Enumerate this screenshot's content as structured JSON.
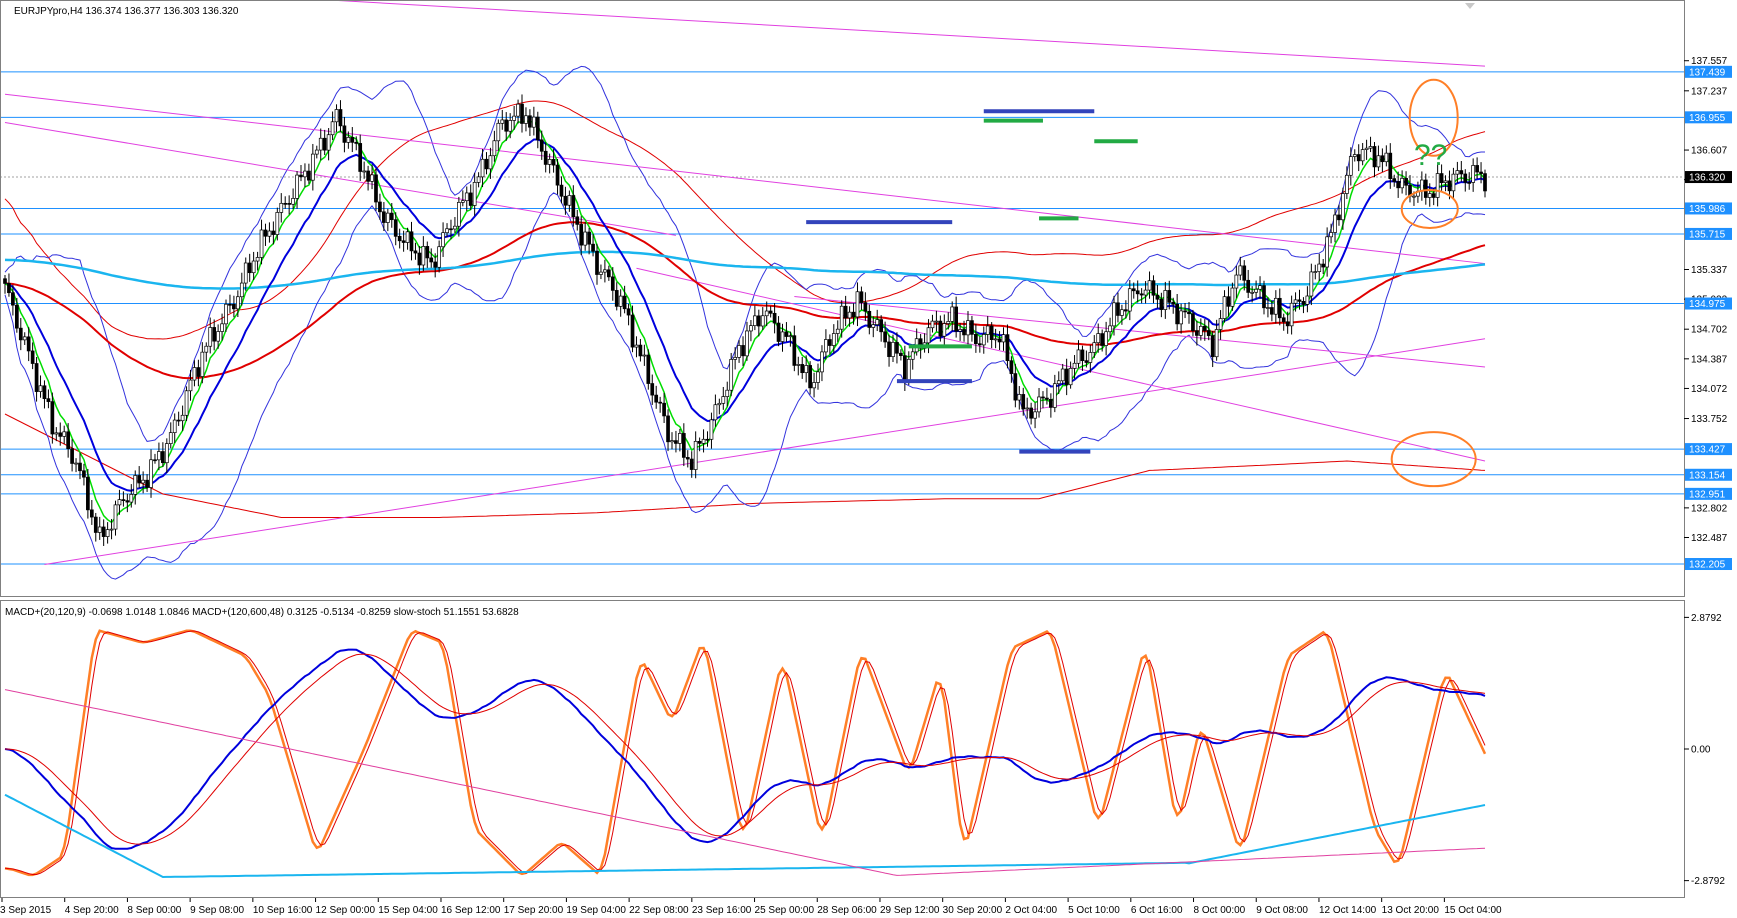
{
  "header": {
    "symbol_text": "EURJPYpro,H4  136.374 136.377 136.303 136.320",
    "indicator_text": "MACD+(20,120,9) -0.0698 1.0148 1.0846  MACD+(120,600,48) 0.3125 -0.5134 -0.8259  slow-stoch 51.1551 53.6828"
  },
  "annotation": {
    "question_text": "??"
  },
  "colors": {
    "level_line": "#1e90ff",
    "level_box": "#1e90ff",
    "trend_line": "#e040e0",
    "bullish_candle": "#ffffff",
    "bearish_candle": "#000000",
    "green_ma": "#00dd00",
    "blue_ma": "#0000dd",
    "bollinger": "#3333dd",
    "red_ma": "#e00000",
    "red_envelope": "#e00000",
    "cyan_ma": "#1ab5ef",
    "support_marker": "#3344bb",
    "green_marker": "#22aa44",
    "highlight_ellipse": "#ff7f27",
    "stoch_main": "#ff7f27",
    "stoch_signal": "#e00000",
    "macd_fast": "#0000dd",
    "macd_signal": "#e00000",
    "macd_slow": "#1ab5ef",
    "macd_slow_signal": "#e040a0"
  },
  "chart_data": [
    {
      "type": "candlestick",
      "symbol": "EURJPYpro",
      "timeframe": "H4",
      "price_axis": {
        "range": [
          132.035,
          137.99
        ],
        "tick_labels": [
          "137.557",
          "137.237",
          "136.607",
          "136.292",
          "135.337",
          "135.022",
          "134.702",
          "134.387",
          "134.072",
          "133.752",
          "132.802",
          "132.487"
        ]
      },
      "price_tags": [
        "137.439",
        "136.955",
        "135.986",
        "135.715",
        "134.975",
        "133.427",
        "133.154",
        "132.951",
        "132.205"
      ],
      "current_price": "136.320",
      "time_axis": {
        "labels": [
          "3 Sep 2015",
          "4 Sep 20:00",
          "8 Sep 00:00",
          "9 Sep 08:00",
          "10 Sep 16:00",
          "12 Sep 00:00",
          "15 Sep 04:00",
          "16 Sep 12:00",
          "17 Sep 20:00",
          "19 Sep 04:00",
          "22 Sep 08:00",
          "23 Sep 16:00",
          "25 Sep 00:00",
          "28 Sep 06:00",
          "29 Sep 12:00",
          "30 Sep 20:00",
          "2 Oct 04:00",
          "5 Oct 10:00",
          "6 Oct 16:00",
          "8 Oct 00:00",
          "9 Oct 08:00",
          "12 Oct 14:00",
          "13 Oct 20:00",
          "15 Oct 04:00"
        ]
      },
      "close_path": [
        [
          0,
          135.15
        ],
        [
          12,
          133.7
        ],
        [
          18,
          133.3
        ],
        [
          24,
          132.45
        ],
        [
          30,
          132.9
        ],
        [
          36,
          133.15
        ],
        [
          42,
          133.55
        ],
        [
          50,
          134.45
        ],
        [
          58,
          135.0
        ],
        [
          64,
          135.55
        ],
        [
          72,
          136.1
        ],
        [
          78,
          136.5
        ],
        [
          84,
          136.95
        ],
        [
          90,
          136.5
        ],
        [
          96,
          135.9
        ],
        [
          102,
          135.6
        ],
        [
          108,
          135.4
        ],
        [
          114,
          135.9
        ],
        [
          120,
          136.3
        ],
        [
          126,
          136.9
        ],
        [
          132,
          137.0
        ],
        [
          138,
          136.45
        ],
        [
          144,
          135.9
        ],
        [
          150,
          135.4
        ],
        [
          156,
          135.0
        ],
        [
          162,
          134.3
        ],
        [
          168,
          133.6
        ],
        [
          174,
          133.3
        ],
        [
          180,
          133.8
        ],
        [
          186,
          134.5
        ],
        [
          192,
          134.9
        ],
        [
          198,
          134.6
        ],
        [
          204,
          134.1
        ],
        [
          210,
          134.7
        ],
        [
          216,
          135.0
        ],
        [
          222,
          134.65
        ],
        [
          228,
          134.3
        ],
        [
          234,
          134.7
        ],
        [
          240,
          134.8
        ],
        [
          246,
          134.6
        ],
        [
          252,
          134.65
        ],
        [
          258,
          133.8
        ],
        [
          264,
          133.95
        ],
        [
          270,
          134.3
        ],
        [
          276,
          134.5
        ],
        [
          282,
          134.9
        ],
        [
          288,
          135.15
        ],
        [
          294,
          135.0
        ],
        [
          300,
          134.8
        ],
        [
          306,
          134.55
        ],
        [
          312,
          135.3
        ],
        [
          318,
          135.05
        ],
        [
          324,
          134.8
        ],
        [
          330,
          135.1
        ],
        [
          336,
          135.7
        ],
        [
          342,
          136.6
        ],
        [
          348,
          136.55
        ],
        [
          354,
          136.2
        ],
        [
          360,
          136.15
        ],
        [
          366,
          136.3
        ],
        [
          372,
          136.35
        ],
        [
          375,
          136.32
        ]
      ],
      "red_envelope_lower": [
        [
          0,
          133.8
        ],
        [
          40,
          132.95
        ],
        [
          70,
          132.7
        ],
        [
          110,
          132.7
        ],
        [
          150,
          132.75
        ],
        [
          190,
          132.85
        ],
        [
          240,
          132.9
        ],
        [
          262,
          132.9
        ],
        [
          290,
          133.2
        ],
        [
          316,
          133.25
        ],
        [
          340,
          133.3
        ],
        [
          375,
          133.2
        ]
      ],
      "indicators": [
        "green_ma",
        "blue_ma",
        "bollinger_upper",
        "bollinger_lower",
        "red_ma",
        "red_envelope_upper",
        "red_envelope_lower",
        "cyan_ma"
      ]
    },
    {
      "type": "line",
      "panel": "indicator",
      "series": [
        {
          "name": "MACD+(20,120,9)"
        },
        {
          "name": "MACD+(120,600,48)"
        },
        {
          "name": "slow-stoch"
        }
      ],
      "y_axis": {
        "range": [
          -3.15,
          3.15
        ],
        "tick_labels": [
          "2.8792",
          "0.00",
          "-2.8792"
        ]
      },
      "stoch_turning_points": [
        [
          0,
          5
        ],
        [
          6,
          2
        ],
        [
          14,
          10
        ],
        [
          22,
          95
        ],
        [
          34,
          90
        ],
        [
          46,
          95
        ],
        [
          60,
          85
        ],
        [
          66,
          70
        ],
        [
          78,
          10
        ],
        [
          90,
          50
        ],
        [
          102,
          95
        ],
        [
          110,
          90
        ],
        [
          118,
          20
        ],
        [
          130,
          2
        ],
        [
          140,
          15
        ],
        [
          150,
          2
        ],
        [
          160,
          85
        ],
        [
          168,
          60
        ],
        [
          176,
          92
        ],
        [
          186,
          15
        ],
        [
          196,
          85
        ],
        [
          206,
          15
        ],
        [
          216,
          88
        ],
        [
          228,
          40
        ],
        [
          236,
          80
        ],
        [
          242,
          10
        ],
        [
          254,
          88
        ],
        [
          264,
          95
        ],
        [
          276,
          20
        ],
        [
          288,
          90
        ],
        [
          296,
          20
        ],
        [
          302,
          60
        ],
        [
          312,
          10
        ],
        [
          324,
          85
        ],
        [
          334,
          95
        ],
        [
          346,
          20
        ],
        [
          352,
          5
        ],
        [
          364,
          80
        ],
        [
          375,
          45
        ]
      ]
    }
  ]
}
